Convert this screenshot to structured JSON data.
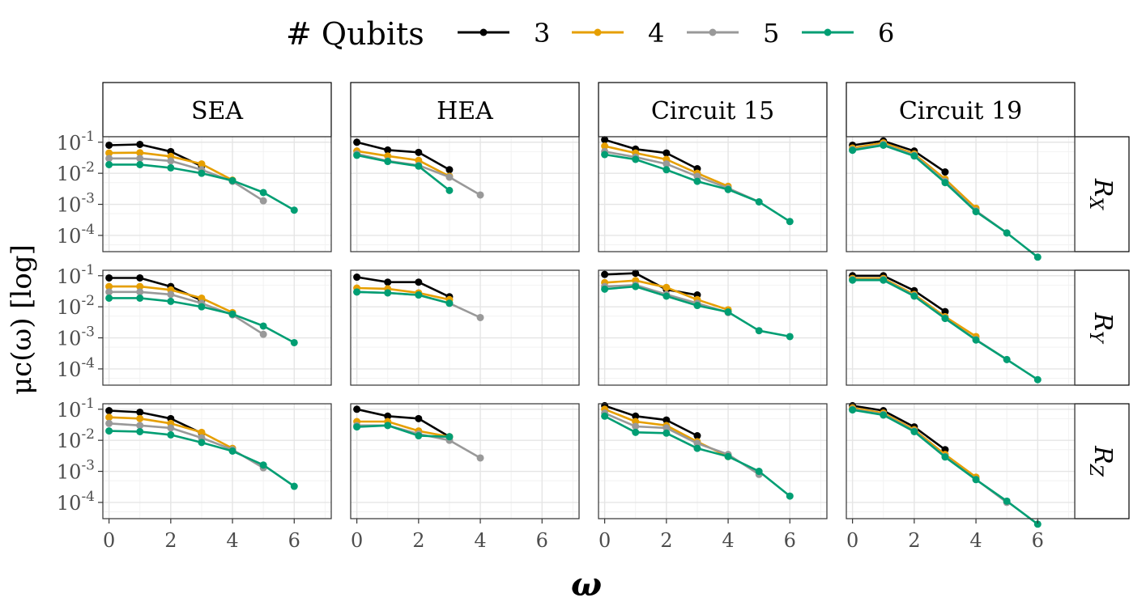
{
  "legend": {
    "title": "# Qubits",
    "items": [
      {
        "label": "3",
        "color": "#000000"
      },
      {
        "label": "4",
        "color": "#E69F00"
      },
      {
        "label": "5",
        "color": "#999999"
      },
      {
        "label": "6",
        "color": "#009E73"
      }
    ]
  },
  "chart_data": {
    "type": "line",
    "xlabel": "ω",
    "ylabel": "μc(ω) [log]",
    "y_scale": "log10",
    "ylim": [
      3e-05,
      0.15
    ],
    "xlim": [
      -0.2,
      7.2
    ],
    "x_ticks": [
      0,
      2,
      4,
      6
    ],
    "y_ticks": [
      {
        "value": 0.1,
        "base": "10",
        "exp": "-1"
      },
      {
        "value": 0.01,
        "base": "10",
        "exp": "-2"
      },
      {
        "value": 0.001,
        "base": "10",
        "exp": "-3"
      },
      {
        "value": 0.0001,
        "base": "10",
        "exp": "-4"
      }
    ],
    "grid": true,
    "legend_position": "top",
    "columns": [
      "SEA",
      "HEA",
      "Circuit 15",
      "Circuit 19"
    ],
    "rows": [
      {
        "label": "R",
        "sub": "X"
      },
      {
        "label": "R",
        "sub": "Y"
      },
      {
        "label": "R",
        "sub": "Z"
      }
    ],
    "series_names": [
      "3",
      "4",
      "5",
      "6"
    ],
    "panels": [
      {
        "row": 0,
        "col": 0,
        "series": [
          {
            "name": "3",
            "values": [
              0.08,
              0.085,
              0.05,
              0.017
            ]
          },
          {
            "name": "4",
            "values": [
              0.045,
              0.046,
              0.035,
              0.02,
              0.006
            ]
          },
          {
            "name": "5",
            "values": [
              0.03,
              0.03,
              0.025,
              0.013,
              0.0055,
              0.0013
            ]
          },
          {
            "name": "6",
            "values": [
              0.019,
              0.019,
              0.015,
              0.01,
              0.0058,
              0.0024,
              0.00065
            ]
          }
        ]
      },
      {
        "row": 0,
        "col": 1,
        "series": [
          {
            "name": "3",
            "values": [
              0.1,
              0.056,
              0.047,
              0.013
            ]
          },
          {
            "name": "4",
            "values": [
              0.052,
              0.036,
              0.026,
              0.008
            ]
          },
          {
            "name": "5",
            "values": [
              0.042,
              0.025,
              0.018,
              0.0075,
              0.002
            ]
          },
          {
            "name": "6",
            "values": [
              0.038,
              0.024,
              0.017,
              0.0028
            ]
          }
        ]
      },
      {
        "row": 0,
        "col": 2,
        "series": [
          {
            "name": "3",
            "values": [
              0.12,
              0.06,
              0.045,
              0.014
            ]
          },
          {
            "name": "4",
            "values": [
              0.075,
              0.045,
              0.028,
              0.01,
              0.0038
            ]
          },
          {
            "name": "5",
            "values": [
              0.05,
              0.033,
              0.02,
              0.008,
              0.0033,
              0.0012
            ]
          },
          {
            "name": "6",
            "values": [
              0.04,
              0.028,
              0.013,
              0.0055,
              0.003,
              0.0012,
              0.00028
            ]
          }
        ]
      },
      {
        "row": 0,
        "col": 3,
        "series": [
          {
            "name": "3",
            "values": [
              0.08,
              0.11,
              0.052,
              0.011
            ]
          },
          {
            "name": "4",
            "values": [
              0.065,
              0.095,
              0.042,
              0.0065,
              0.00075
            ]
          },
          {
            "name": "5",
            "values": [
              0.058,
              0.085,
              0.038,
              0.0055,
              0.00062,
              0.00012
            ]
          },
          {
            "name": "6",
            "values": [
              0.055,
              0.08,
              0.036,
              0.005,
              0.00058,
              0.00012,
              2e-05
            ]
          }
        ]
      },
      {
        "row": 1,
        "col": 0,
        "series": [
          {
            "name": "3",
            "values": [
              0.085,
              0.085,
              0.045,
              0.016
            ]
          },
          {
            "name": "4",
            "values": [
              0.045,
              0.045,
              0.035,
              0.019,
              0.0065
            ]
          },
          {
            "name": "5",
            "values": [
              0.03,
              0.03,
              0.025,
              0.013,
              0.0055,
              0.0013
            ]
          },
          {
            "name": "6",
            "values": [
              0.019,
              0.019,
              0.015,
              0.01,
              0.0058,
              0.0024,
              0.0007
            ]
          }
        ]
      },
      {
        "row": 1,
        "col": 1,
        "series": [
          {
            "name": "3",
            "values": [
              0.09,
              0.062,
              0.062,
              0.021
            ]
          },
          {
            "name": "4",
            "values": [
              0.04,
              0.038,
              0.028,
              0.017
            ]
          },
          {
            "name": "5",
            "values": [
              0.03,
              0.028,
              0.024,
              0.013,
              0.0045
            ]
          },
          {
            "name": "6",
            "values": [
              0.03,
              0.028,
              0.024,
              0.013
            ]
          }
        ]
      },
      {
        "row": 1,
        "col": 2,
        "series": [
          {
            "name": "3",
            "values": [
              0.11,
              0.12,
              0.036,
              0.024
            ]
          },
          {
            "name": "4",
            "values": [
              0.06,
              0.07,
              0.042,
              0.017,
              0.008
            ]
          },
          {
            "name": "5",
            "values": [
              0.045,
              0.05,
              0.025,
              0.013,
              0.0065
            ]
          },
          {
            "name": "6",
            "values": [
              0.037,
              0.045,
              0.022,
              0.011,
              0.0068,
              0.0017,
              0.0011
            ]
          }
        ]
      },
      {
        "row": 1,
        "col": 3,
        "series": [
          {
            "name": "3",
            "values": [
              0.1,
              0.1,
              0.033,
              0.007
            ]
          },
          {
            "name": "4",
            "values": [
              0.082,
              0.082,
              0.025,
              0.0048,
              0.0011
            ]
          },
          {
            "name": "5",
            "values": [
              0.075,
              0.075,
              0.023,
              0.0043,
              0.00088,
              0.0002
            ]
          },
          {
            "name": "6",
            "values": [
              0.072,
              0.072,
              0.022,
              0.0042,
              0.00085,
              0.0002,
              4.5e-05
            ]
          }
        ]
      },
      {
        "row": 2,
        "col": 0,
        "series": [
          {
            "name": "3",
            "values": [
              0.09,
              0.08,
              0.05,
              0.017
            ]
          },
          {
            "name": "4",
            "values": [
              0.055,
              0.05,
              0.035,
              0.018,
              0.0055
            ]
          },
          {
            "name": "5",
            "values": [
              0.035,
              0.03,
              0.025,
              0.012,
              0.005,
              0.0013
            ]
          },
          {
            "name": "6",
            "values": [
              0.02,
              0.019,
              0.015,
              0.0085,
              0.0045,
              0.0016,
              0.00033
            ]
          }
        ]
      },
      {
        "row": 2,
        "col": 1,
        "series": [
          {
            "name": "3",
            "values": [
              0.1,
              0.06,
              0.05,
              0.013
            ]
          },
          {
            "name": "4",
            "values": [
              0.04,
              0.04,
              0.02,
              0.013
            ]
          },
          {
            "name": "5",
            "values": [
              0.03,
              0.03,
              0.016,
              0.01,
              0.0027
            ]
          },
          {
            "name": "6",
            "values": [
              0.027,
              0.03,
              0.014,
              0.013
            ]
          }
        ]
      },
      {
        "row": 2,
        "col": 2,
        "series": [
          {
            "name": "3",
            "values": [
              0.13,
              0.06,
              0.045,
              0.014
            ]
          },
          {
            "name": "4",
            "values": [
              0.1,
              0.04,
              0.03,
              0.009,
              0.003
            ]
          },
          {
            "name": "5",
            "values": [
              0.075,
              0.028,
              0.025,
              0.008,
              0.0035,
              0.0008
            ]
          },
          {
            "name": "6",
            "values": [
              0.06,
              0.018,
              0.017,
              0.0055,
              0.003,
              0.001,
              0.00016
            ]
          }
        ]
      },
      {
        "row": 2,
        "col": 3,
        "series": [
          {
            "name": "3",
            "values": [
              0.13,
              0.09,
              0.027,
              0.005
            ]
          },
          {
            "name": "4",
            "values": [
              0.11,
              0.075,
              0.022,
              0.0035,
              0.00065
            ]
          },
          {
            "name": "5",
            "values": [
              0.1,
              0.068,
              0.02,
              0.003,
              0.00055,
              0.0001
            ]
          },
          {
            "name": "6",
            "values": [
              0.095,
              0.065,
              0.019,
              0.0029,
              0.00054,
              0.00011,
              2e-05
            ]
          }
        ]
      }
    ]
  }
}
